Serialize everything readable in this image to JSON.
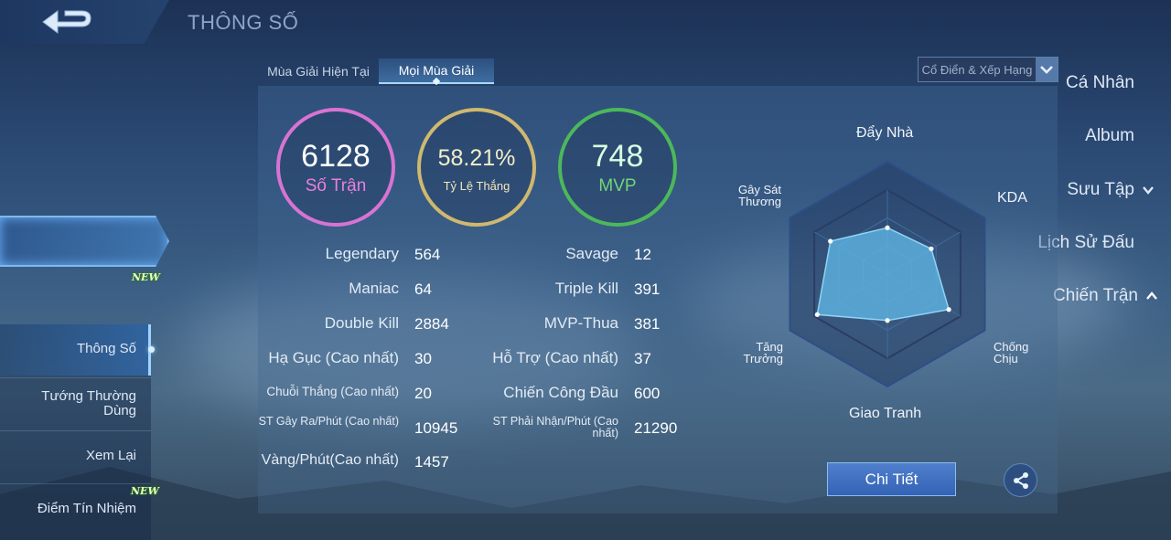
{
  "header": {
    "title": "THÔNG SỐ"
  },
  "sidebar": {
    "items": [
      {
        "label": "Cá Nhân"
      },
      {
        "label": "Album"
      },
      {
        "label": "Sưu Tập"
      },
      {
        "label": "Lịch Sử Đấu"
      },
      {
        "label": "Chiến Trận"
      }
    ],
    "new_badge": "NEW",
    "sub_items": [
      {
        "label": "Thông Số"
      },
      {
        "label": "Tướng Thường Dùng"
      },
      {
        "label": "Xem Lại"
      },
      {
        "label": "Điểm Tín Nhiệm"
      }
    ]
  },
  "tabs": [
    {
      "label": "Mùa Giải Hiện Tại"
    },
    {
      "label": "Mọi Mùa Giải"
    }
  ],
  "mode_select": {
    "value": "Cổ Điển & Xếp Hạng"
  },
  "summary": {
    "matches": {
      "value": "6128",
      "label": "Số Trận"
    },
    "win_rate": {
      "value": "58.21%",
      "label": "Tỷ Lệ Thắng"
    },
    "mvp": {
      "value": "748",
      "label": "MVP"
    }
  },
  "stats_left": [
    {
      "label": "Legendary",
      "value": "564"
    },
    {
      "label": "Maniac",
      "value": "64"
    },
    {
      "label": "Double Kill",
      "value": "2884"
    },
    {
      "label": "Hạ Gục (Cao nhất)",
      "value": "30"
    },
    {
      "label": "Chuỗi Thắng (Cao nhất)",
      "value": "20"
    },
    {
      "label": "ST Gây Ra/Phút (Cao nhất)",
      "value": "10945"
    },
    {
      "label": "Vàng/Phút(Cao nhất)",
      "value": "1457"
    }
  ],
  "stats_right": [
    {
      "label": "Savage",
      "value": "12"
    },
    {
      "label": "Triple Kill",
      "value": "391"
    },
    {
      "label": "MVP-Thua",
      "value": "381"
    },
    {
      "label": "Hỗ Trợ (Cao nhất)",
      "value": "37"
    },
    {
      "label": "Chiến Công Đầu",
      "value": "600"
    },
    {
      "label": "ST Phải Nhận/Phút (Cao nhất)",
      "value": "21290"
    }
  ],
  "radar": {
    "axes": [
      {
        "label": "Đẩy Nhà",
        "level": 0.55
      },
      {
        "label": "KDA",
        "level": 0.6
      },
      {
        "label": "Chống Chịu",
        "level": 0.84
      },
      {
        "label": "Giao Tranh",
        "level": 0.55
      },
      {
        "label": "Tăng Trưởng",
        "level": 0.96
      },
      {
        "label": "Gây Sát Thương",
        "level": 0.78
      }
    ],
    "fill_color": "#5fb6e6"
  },
  "actions": {
    "detail_label": "Chi Tiết",
    "share_icon": "share-icon"
  }
}
